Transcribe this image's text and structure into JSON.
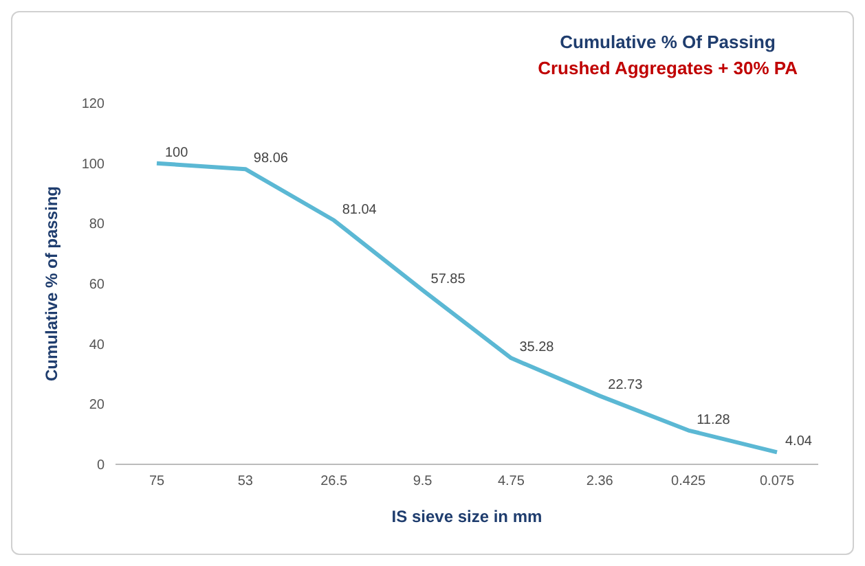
{
  "chart_data": {
    "type": "line",
    "title": "Cumulative % Of Passing",
    "subtitle": "Crushed Aggregates + 30% PA",
    "xlabel": "IS sieve size in mm",
    "ylabel": "Cumulative % of passing",
    "categories": [
      "75",
      "53",
      "26.5",
      "9.5",
      "4.75",
      "2.36",
      "0.425",
      "0.075"
    ],
    "series": [
      {
        "color": "#5bb8d4",
        "values": [
          100,
          98.06,
          81.04,
          57.85,
          35.28,
          22.73,
          11.28,
          4.04
        ]
      }
    ],
    "ylim": [
      0,
      120
    ],
    "yticks": [
      0,
      20,
      40,
      60,
      80,
      100,
      120
    ],
    "grid": false,
    "legend": false,
    "data_labels": true,
    "marker": "none"
  }
}
